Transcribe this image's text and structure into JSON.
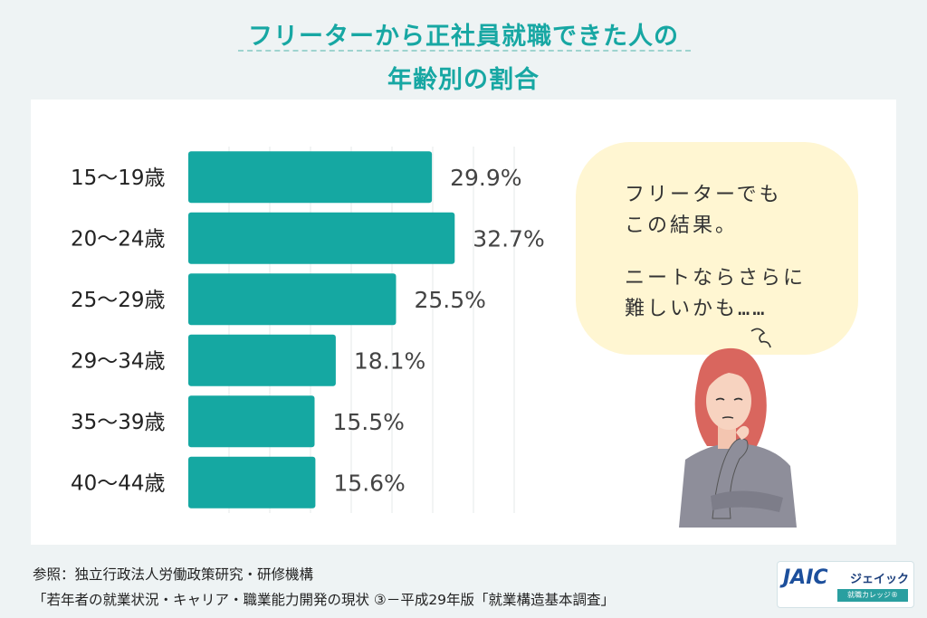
{
  "header": {
    "title_line1": "フリーターから正社員就職できた人の",
    "title_line2": "年齢別の割合"
  },
  "chart_data": {
    "type": "bar",
    "orientation": "horizontal",
    "categories": [
      "15〜19歳",
      "20〜24歳",
      "25〜29歳",
      "29〜34歳",
      "35〜39歳",
      "40〜44歳"
    ],
    "values": [
      29.9,
      32.7,
      25.5,
      18.1,
      15.5,
      15.6
    ],
    "value_labels": [
      "29.9%",
      "32.7%",
      "25.5%",
      "18.1%",
      "15.5%",
      "15.6%"
    ],
    "xlim": [
      0,
      40
    ],
    "grid": true,
    "bar_color": "#15a8a2"
  },
  "bubble": {
    "line1": "フリーターでも",
    "line2": "この結果。",
    "line3": "ニートならさらに",
    "line4": "難しいかも……"
  },
  "source": {
    "line1": "参照：独立行政法人労働政策研究・研修機構",
    "line2": "「若年者の就業状況・キャリア・職業能力開発の現状 ③－平成29年版「就業構造基本調査」"
  },
  "logo": {
    "mark": "JAIC",
    "name": "ジェイック",
    "sub": "就職カレッジ®"
  },
  "colors": {
    "accent": "#17a7a3",
    "bubble": "#fff6d2",
    "hair": "#d9665e",
    "sweater": "#8e8e9a"
  },
  "illustration": "thinking-woman"
}
